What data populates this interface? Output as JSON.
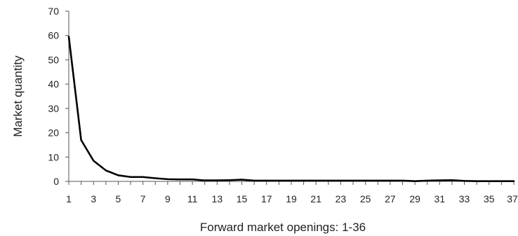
{
  "chart_data": {
    "type": "line",
    "title": "",
    "xlabel": "Forward market openings: 1-36",
    "ylabel": "Market quantity",
    "xlim": [
      1,
      37
    ],
    "ylim": [
      0,
      70
    ],
    "grid": false,
    "legend": "none",
    "line_color": "#000000",
    "x_ticks": [
      1,
      3,
      5,
      7,
      9,
      11,
      13,
      15,
      17,
      19,
      21,
      23,
      25,
      27,
      29,
      31,
      33,
      35,
      37
    ],
    "y_ticks": [
      0,
      10,
      20,
      30,
      40,
      50,
      60,
      70
    ],
    "x": [
      1,
      2,
      3,
      4,
      5,
      6,
      7,
      8,
      9,
      10,
      11,
      12,
      13,
      14,
      15,
      16,
      17,
      18,
      19,
      20,
      21,
      22,
      23,
      24,
      25,
      26,
      27,
      28,
      29,
      30,
      31,
      32,
      33,
      34,
      35,
      36,
      37
    ],
    "series": [
      {
        "values": [
          59.5,
          17,
          8.5,
          4.5,
          2.5,
          1.8,
          1.8,
          1.3,
          0.9,
          0.8,
          0.8,
          0.4,
          0.4,
          0.5,
          0.7,
          0.3,
          0.3,
          0.3,
          0.3,
          0.3,
          0.3,
          0.3,
          0.3,
          0.3,
          0.3,
          0.3,
          0.3,
          0.3,
          0.1,
          0.3,
          0.4,
          0.5,
          0.2,
          0.1,
          0.1,
          0.1,
          0.1
        ]
      }
    ]
  }
}
